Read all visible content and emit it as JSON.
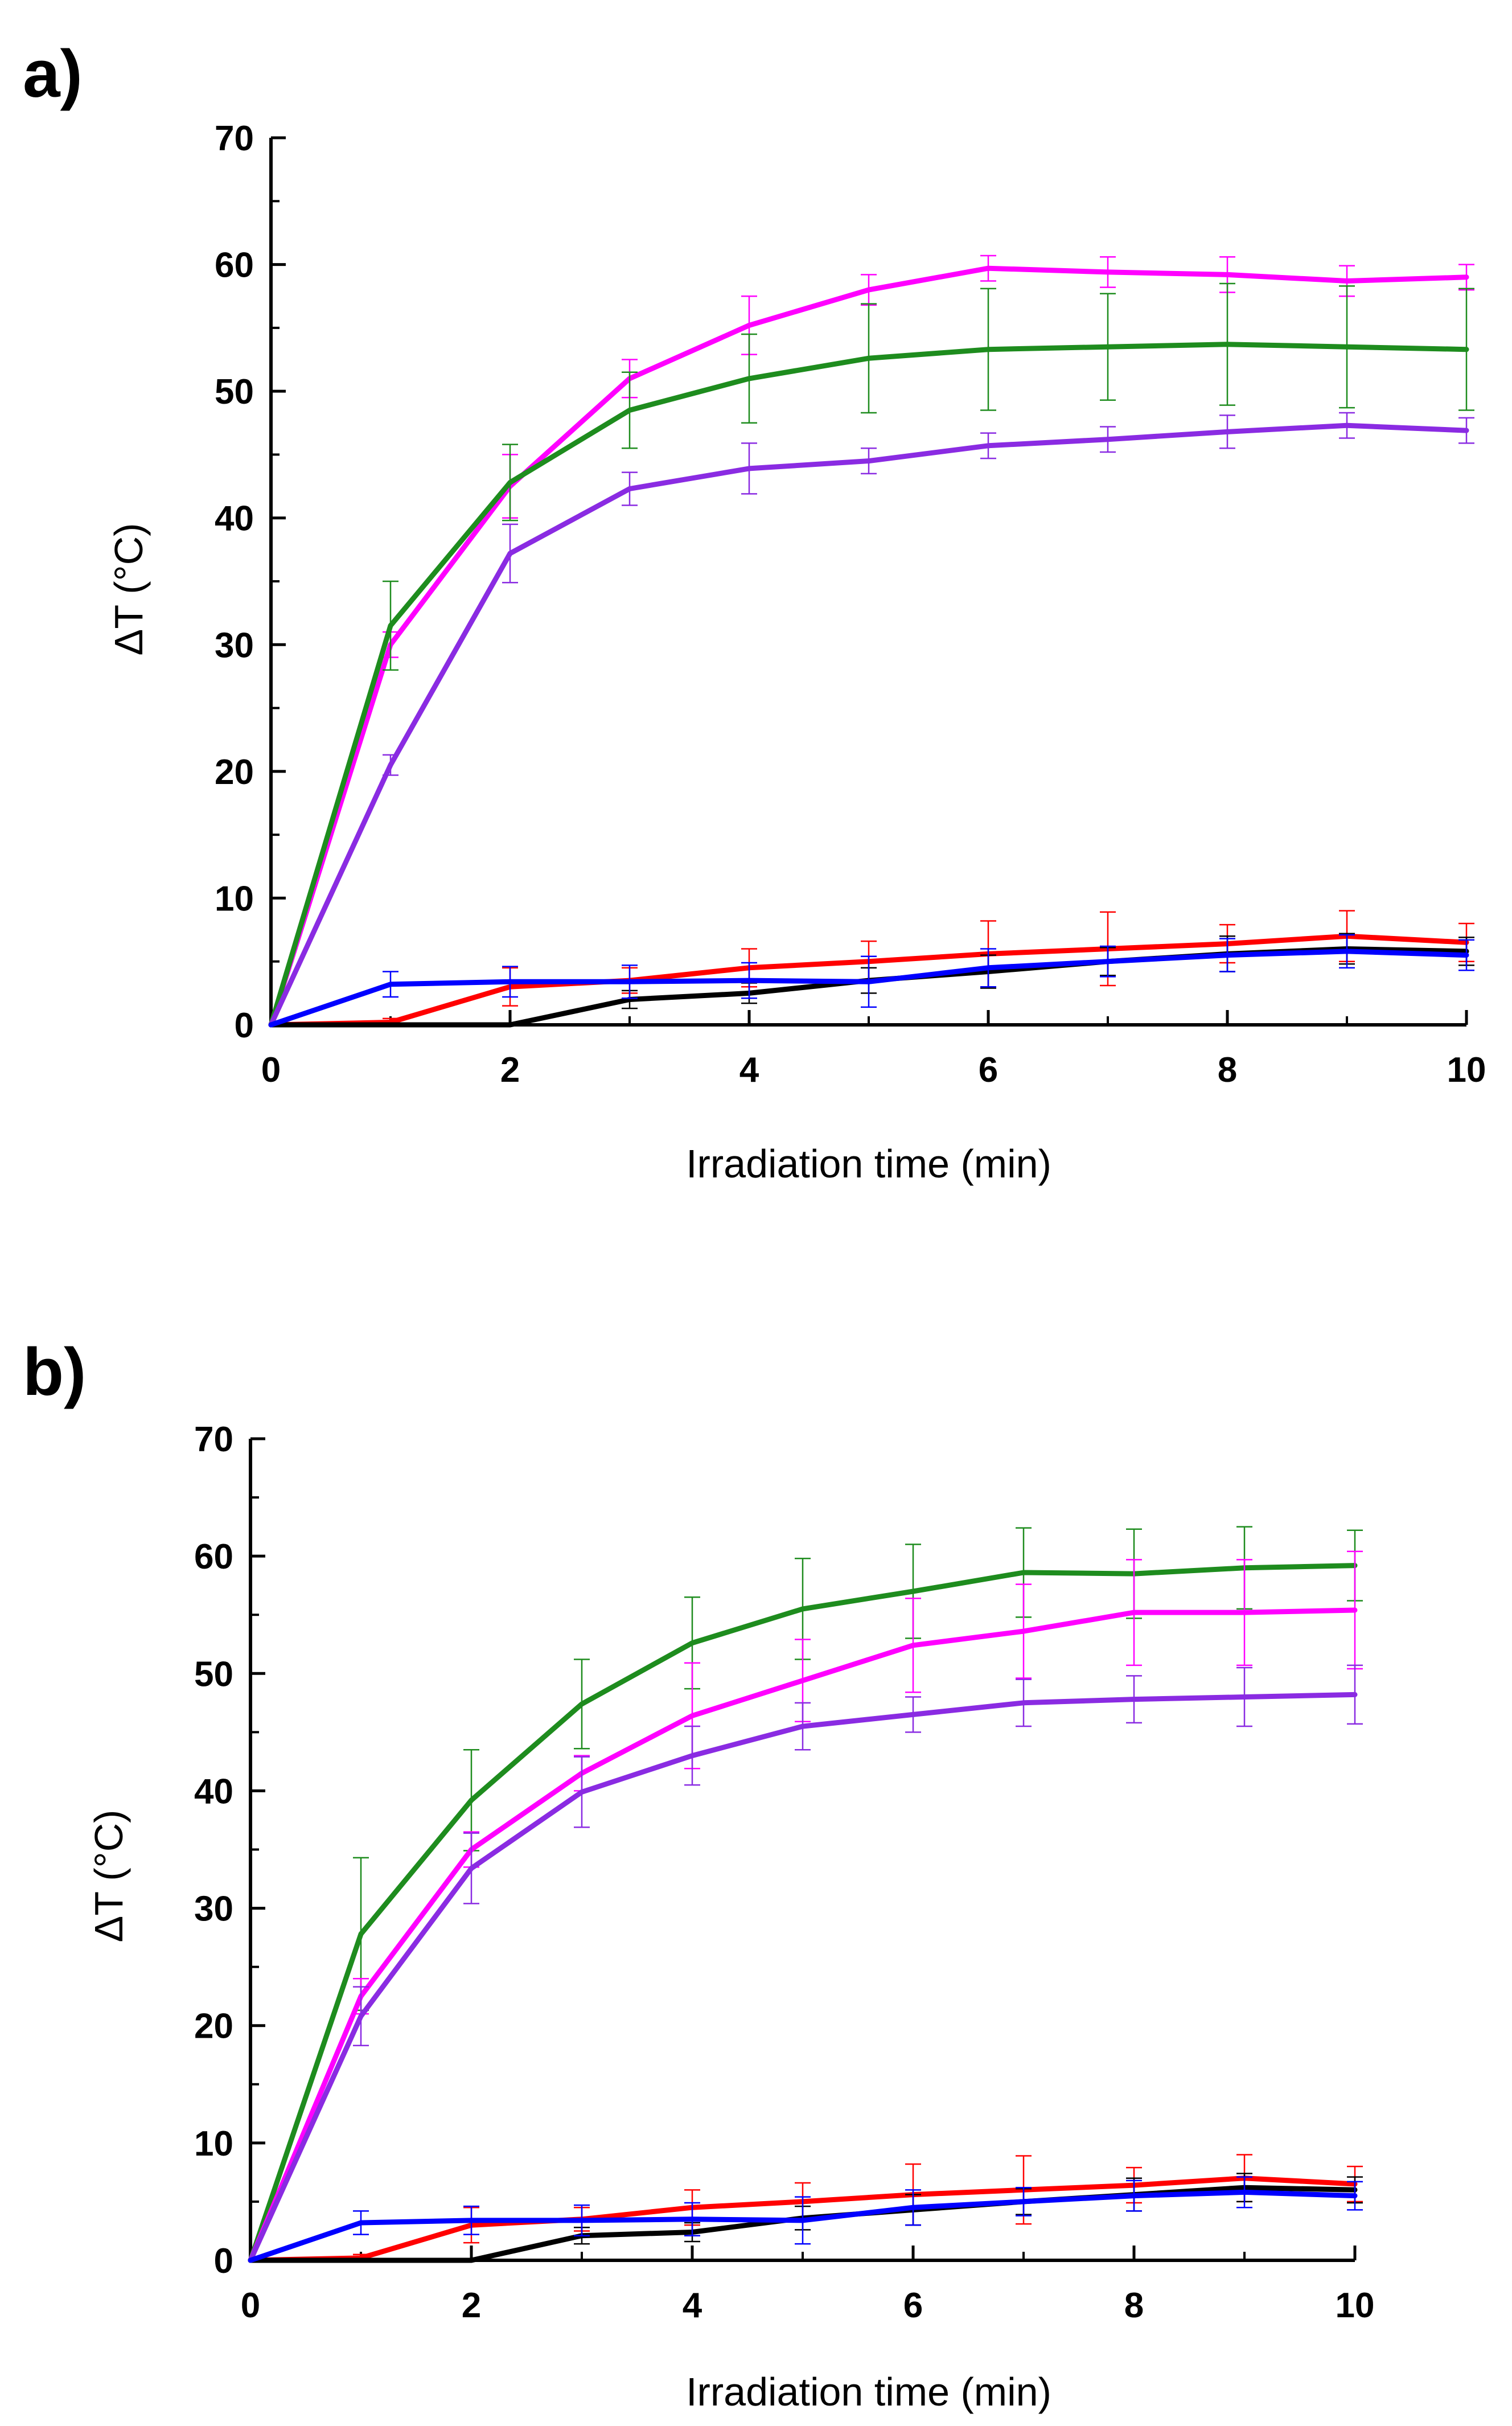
{
  "chart_data": [
    {
      "panel_label": "a)",
      "type": "line",
      "xlabel": "Irradiation time (min)",
      "ylabel": "ΔT (°C)",
      "xlim": [
        0,
        10
      ],
      "ylim": [
        0,
        70
      ],
      "xticks": [
        "0",
        "2",
        "4",
        "6",
        "8",
        "10"
      ],
      "yticks": [
        "0",
        "10",
        "20",
        "30",
        "40",
        "50",
        "60",
        "70"
      ],
      "legend": "none",
      "grid": false,
      "x": [
        0,
        1,
        2,
        3,
        4,
        5,
        6,
        7,
        8,
        9,
        10
      ],
      "series": [
        {
          "name": "magenta",
          "color": "#ff00ff",
          "values": [
            0,
            30.0,
            42.5,
            51.0,
            55.2,
            58.0,
            59.7,
            59.4,
            59.2,
            58.7,
            59.0
          ],
          "errors": [
            0,
            1.0,
            2.5,
            1.5,
            2.3,
            1.2,
            1.0,
            1.2,
            1.4,
            1.2,
            1.0
          ]
        },
        {
          "name": "green",
          "color": "#1e8c1e",
          "values": [
            0,
            31.5,
            42.8,
            48.5,
            51.0,
            52.6,
            53.3,
            53.5,
            53.7,
            53.5,
            53.3
          ],
          "errors": [
            0,
            3.5,
            3.0,
            3.0,
            3.5,
            4.3,
            4.8,
            4.2,
            4.8,
            4.8,
            4.8
          ]
        },
        {
          "name": "violet",
          "color": "#8a2be2",
          "values": [
            0,
            20.5,
            37.2,
            42.3,
            43.9,
            44.5,
            45.7,
            46.2,
            46.8,
            47.3,
            46.9
          ],
          "errors": [
            0,
            0.8,
            2.3,
            1.3,
            2.0,
            1.0,
            1.0,
            1.0,
            1.3,
            1.0,
            1.0
          ]
        },
        {
          "name": "red",
          "color": "#ff0000",
          "values": [
            0,
            0.2,
            3.0,
            3.5,
            4.5,
            5.0,
            5.6,
            6.0,
            6.4,
            7.0,
            6.5
          ],
          "errors": [
            0,
            0.3,
            1.5,
            1.0,
            1.5,
            1.6,
            2.6,
            2.9,
            1.5,
            2.0,
            1.5
          ]
        },
        {
          "name": "black",
          "color": "#000000",
          "values": [
            0,
            0,
            0,
            2.0,
            2.5,
            3.5,
            4.2,
            5.0,
            5.6,
            6.0,
            5.8
          ],
          "errors": [
            0,
            0,
            0,
            0.7,
            0.8,
            1.0,
            1.3,
            1.1,
            1.4,
            1.2,
            1.1
          ]
        },
        {
          "name": "blue",
          "color": "#0000ff",
          "values": [
            0,
            3.2,
            3.4,
            3.4,
            3.5,
            3.4,
            4.5,
            5.0,
            5.5,
            5.8,
            5.5
          ],
          "errors": [
            0,
            1.0,
            1.2,
            1.3,
            1.4,
            2.0,
            1.5,
            1.2,
            1.3,
            1.3,
            1.2
          ]
        }
      ]
    },
    {
      "panel_label": "b)",
      "type": "line",
      "xlabel": "Irradiation time (min)",
      "ylabel": "ΔT (°C)",
      "xlim": [
        0,
        10
      ],
      "ylim": [
        0,
        70
      ],
      "xticks": [
        "0",
        "2",
        "4",
        "6",
        "8",
        "10"
      ],
      "yticks": [
        "0",
        "10",
        "20",
        "30",
        "40",
        "50",
        "60",
        "70"
      ],
      "legend": "none",
      "grid": false,
      "x": [
        0,
        1,
        2,
        3,
        4,
        5,
        6,
        7,
        8,
        9,
        10
      ],
      "series": [
        {
          "name": "green",
          "color": "#1e8c1e",
          "values": [
            0,
            27.8,
            39.2,
            47.4,
            52.6,
            55.5,
            57.0,
            58.6,
            58.5,
            59.0,
            59.2
          ],
          "errors": [
            0,
            6.5,
            4.3,
            3.8,
            3.9,
            4.3,
            4.0,
            3.8,
            3.8,
            3.5,
            3.0
          ]
        },
        {
          "name": "magenta",
          "color": "#ff00ff",
          "values": [
            0,
            22.5,
            35.0,
            41.5,
            46.4,
            49.4,
            52.4,
            53.6,
            55.2,
            55.2,
            55.4
          ],
          "errors": [
            0,
            1.5,
            1.5,
            1.5,
            4.5,
            3.5,
            4.0,
            4.0,
            4.5,
            4.5,
            5.0
          ]
        },
        {
          "name": "violet",
          "color": "#8a2be2",
          "values": [
            0,
            20.8,
            33.4,
            39.9,
            43.0,
            45.5,
            46.5,
            47.5,
            47.8,
            48.0,
            48.2
          ],
          "errors": [
            0,
            2.5,
            3.0,
            3.0,
            2.5,
            2.0,
            1.5,
            2.0,
            2.0,
            2.5,
            2.5
          ]
        },
        {
          "name": "red",
          "color": "#ff0000",
          "values": [
            0,
            0.2,
            3.0,
            3.5,
            4.5,
            5.0,
            5.6,
            6.0,
            6.4,
            7.0,
            6.5
          ],
          "errors": [
            0,
            0.3,
            1.5,
            1.0,
            1.5,
            1.6,
            2.6,
            2.9,
            1.5,
            2.0,
            1.5
          ]
        },
        {
          "name": "black",
          "color": "#000000",
          "values": [
            0,
            0,
            0,
            2.1,
            2.4,
            3.6,
            4.3,
            5.0,
            5.6,
            6.2,
            6.0
          ],
          "errors": [
            0,
            0,
            0,
            0.7,
            0.8,
            1.0,
            1.3,
            1.1,
            1.4,
            1.2,
            1.1
          ]
        },
        {
          "name": "blue",
          "color": "#0000ff",
          "values": [
            0,
            3.2,
            3.4,
            3.4,
            3.5,
            3.4,
            4.5,
            5.0,
            5.5,
            5.8,
            5.5
          ],
          "errors": [
            0,
            1.0,
            1.2,
            1.3,
            1.4,
            2.0,
            1.5,
            1.2,
            1.3,
            1.3,
            1.2
          ]
        }
      ]
    }
  ]
}
